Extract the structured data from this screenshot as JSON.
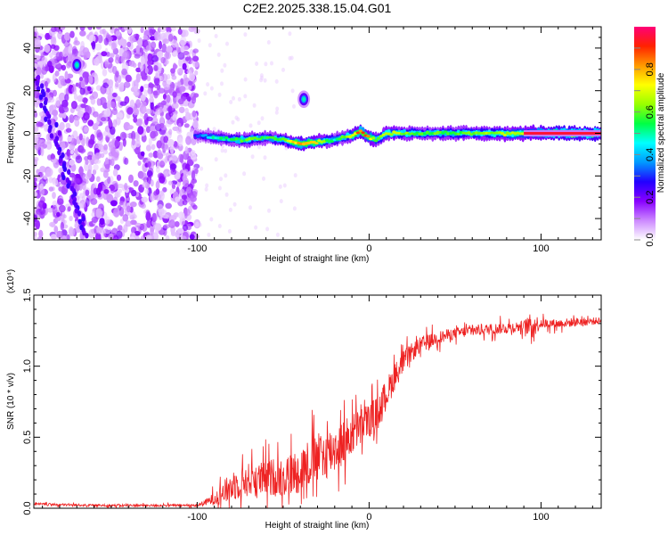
{
  "chart_data": [
    {
      "type": "heatmap",
      "title": "C2E2.2025.338.15.04.G01",
      "xlabel": "Height of straight line (km)",
      "ylabel": "Frequency (Hz)",
      "xlim": [
        -195,
        135
      ],
      "ylim": [
        -50,
        50
      ],
      "x_ticks": [
        -100,
        0,
        100
      ],
      "x_tick_labels": [
        "-100",
        "0",
        "100"
      ],
      "y_ticks": [
        -40,
        -20,
        0,
        20,
        40
      ],
      "y_tick_labels": [
        "-40",
        "-20",
        "0",
        "20",
        "40"
      ],
      "noise_region_x": [
        -195,
        -100
      ],
      "ridge_x": [
        -100,
        -90,
        -80,
        -70,
        -60,
        -50,
        -40,
        -30,
        -20,
        -10,
        -5,
        0,
        5,
        10,
        20,
        30,
        50,
        70,
        90,
        110,
        135
      ],
      "ridge_y": [
        -1,
        -2,
        -3,
        -3,
        -2,
        -3,
        -5,
        -4,
        -3,
        -1,
        1,
        -2,
        -3,
        0,
        0,
        0,
        0,
        0,
        0,
        0,
        0
      ],
      "ridge_amplitude": [
        0.3,
        0.5,
        0.55,
        0.6,
        0.55,
        0.6,
        0.85,
        0.75,
        0.5,
        0.7,
        0.9,
        0.8,
        0.6,
        0.7,
        0.65,
        0.6,
        0.6,
        0.65,
        0.7,
        0.95,
        0.95
      ],
      "features": [
        {
          "name": "tilted track",
          "x": [
            -195,
            -165
          ],
          "y": [
            30,
            -48
          ]
        },
        {
          "name": "bright blob",
          "x": -38,
          "y": 16
        },
        {
          "name": "bright blob",
          "x": -170,
          "y": 32
        }
      ],
      "colorbar": {
        "label": "Normalized spectral amplitude",
        "range": [
          0,
          1
        ],
        "ticks": [
          0.0,
          0.2,
          0.4,
          0.6,
          0.8
        ],
        "tick_labels": [
          "0.0",
          "0.2",
          "0.4",
          "0.6",
          "0.8"
        ],
        "colors": [
          "#ffffff",
          "#cc88ff",
          "#8800ff",
          "#2200ff",
          "#0099ff",
          "#00ffff",
          "#00ff44",
          "#99ff00",
          "#ffff00",
          "#ff9900",
          "#ff2200",
          "#ff0077"
        ]
      }
    },
    {
      "type": "line",
      "xlabel": "Height of straight line (km)",
      "ylabel": "SNR (10 * v/v)",
      "y_multiplier": "(x10⁴)",
      "xlim": [
        -195,
        135
      ],
      "ylim": [
        0,
        1.5
      ],
      "x_ticks": [
        -100,
        0,
        100
      ],
      "x_tick_labels": [
        "-100",
        "0",
        "100"
      ],
      "y_ticks": [
        0,
        0.5,
        1.0,
        1.5
      ],
      "y_tick_labels": [
        "0.0",
        "0.5",
        "1.0",
        "1.5"
      ],
      "line_color": "#ee2222",
      "x": [
        -195,
        -180,
        -160,
        -140,
        -120,
        -100,
        -95,
        -90,
        -85,
        -80,
        -75,
        -70,
        -65,
        -60,
        -55,
        -50,
        -45,
        -40,
        -35,
        -30,
        -25,
        -20,
        -15,
        -10,
        -5,
        0,
        5,
        10,
        15,
        20,
        25,
        30,
        40,
        50,
        60,
        70,
        80,
        90,
        95,
        100,
        110,
        120,
        135
      ],
      "baseline": [
        0.03,
        0.025,
        0.02,
        0.02,
        0.02,
        0.02,
        0.04,
        0.07,
        0.11,
        0.15,
        0.18,
        0.2,
        0.2,
        0.21,
        0.22,
        0.22,
        0.24,
        0.27,
        0.32,
        0.35,
        0.38,
        0.42,
        0.46,
        0.52,
        0.57,
        0.62,
        0.68,
        0.8,
        0.93,
        1.03,
        1.1,
        1.15,
        1.2,
        1.23,
        1.25,
        1.26,
        1.27,
        1.28,
        1.29,
        1.3,
        1.3,
        1.31,
        1.32
      ],
      "spread": [
        0.01,
        0.01,
        0.01,
        0.01,
        0.01,
        0.01,
        0.03,
        0.06,
        0.1,
        0.13,
        0.14,
        0.15,
        0.15,
        0.16,
        0.17,
        0.18,
        0.19,
        0.2,
        0.22,
        0.22,
        0.22,
        0.22,
        0.2,
        0.19,
        0.17,
        0.15,
        0.14,
        0.14,
        0.12,
        0.1,
        0.08,
        0.07,
        0.06,
        0.05,
        0.05,
        0.05,
        0.05,
        0.05,
        0.12,
        0.04,
        0.04,
        0.04,
        0.03
      ]
    }
  ]
}
